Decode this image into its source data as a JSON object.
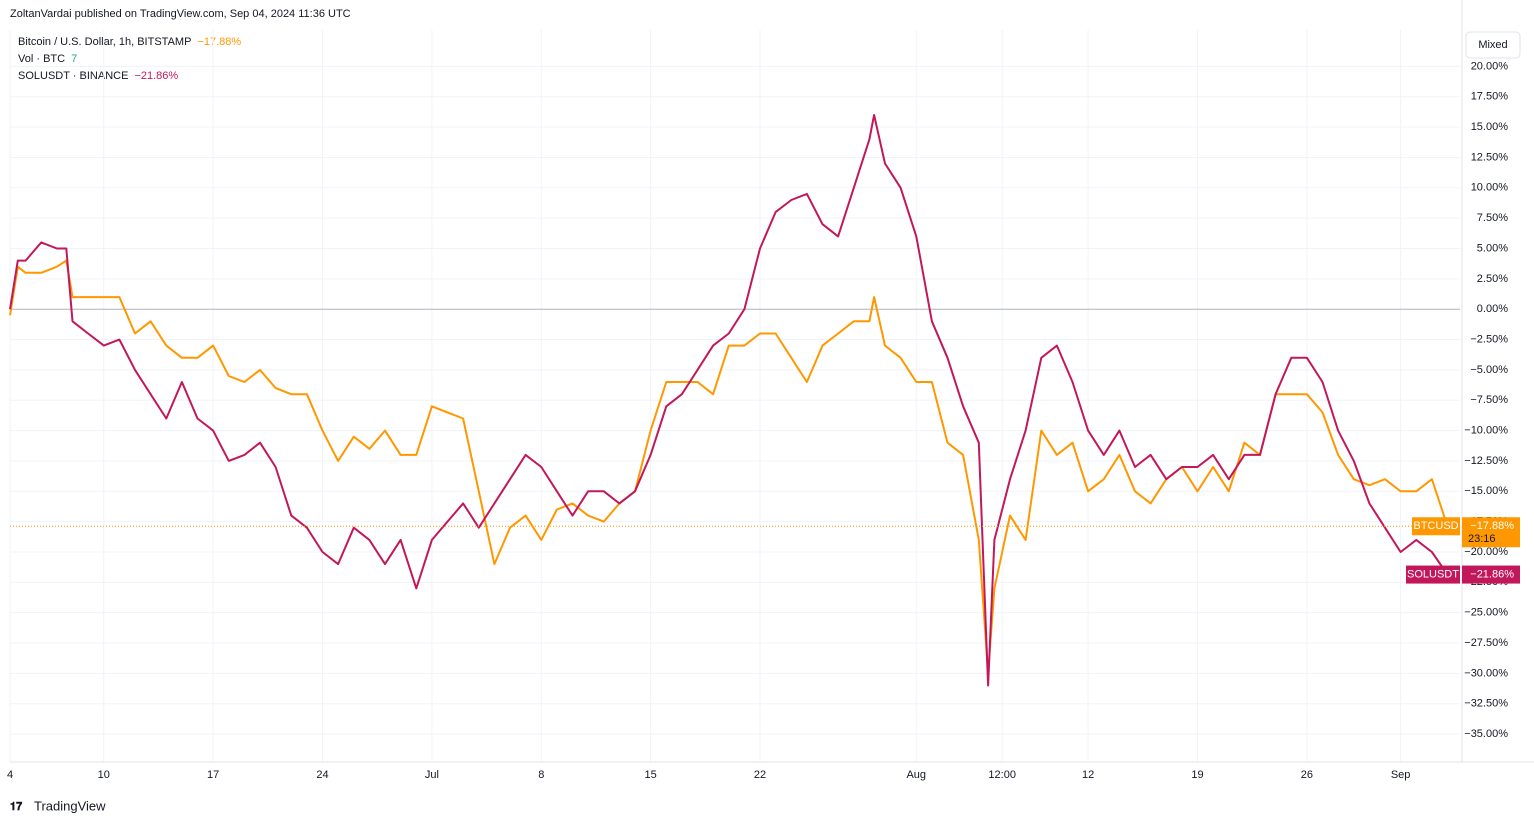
{
  "header": {
    "published": "ZoltanVardai published on TradingView.com, Sep 04, 2024 11:36 UTC",
    "scale_button": "Mixed",
    "footer": "TradingView"
  },
  "legend": {
    "volume_name": "Vol · BTC",
    "volume_value": "7"
  },
  "chart_data": {
    "type": "line",
    "xlim": [
      0,
      92.8
    ],
    "ylim": [
      -37.3,
      23
    ],
    "grid": true,
    "xticks": [
      {
        "value": 0,
        "label": "4"
      },
      {
        "value": 6,
        "label": "10"
      },
      {
        "value": 13,
        "label": "17"
      },
      {
        "value": 20,
        "label": "24"
      },
      {
        "value": 27,
        "label": "Jul"
      },
      {
        "value": 34,
        "label": "8"
      },
      {
        "value": 41,
        "label": "15"
      },
      {
        "value": 48,
        "label": "22"
      },
      {
        "value": 58,
        "label": "Aug"
      },
      {
        "value": 63.5,
        "label": "12:00"
      },
      {
        "value": 69,
        "label": "12"
      },
      {
        "value": 76,
        "label": "19"
      },
      {
        "value": 83,
        "label": "26"
      },
      {
        "value": 89,
        "label": "Sep"
      }
    ],
    "yticks": [
      {
        "value": 20,
        "label": "20.00%"
      },
      {
        "value": 17.5,
        "label": "17.50%"
      },
      {
        "value": 15,
        "label": "15.00%"
      },
      {
        "value": 12.5,
        "label": "12.50%"
      },
      {
        "value": 10,
        "label": "10.00%"
      },
      {
        "value": 7.5,
        "label": "7.50%"
      },
      {
        "value": 5,
        "label": "5.00%"
      },
      {
        "value": 2.5,
        "label": "2.50%"
      },
      {
        "value": 0,
        "label": "0.00%"
      },
      {
        "value": -2.5,
        "label": "−2.50%"
      },
      {
        "value": -5,
        "label": "−5.00%"
      },
      {
        "value": -7.5,
        "label": "−7.50%"
      },
      {
        "value": -10,
        "label": "−10.00%"
      },
      {
        "value": -12.5,
        "label": "−12.50%"
      },
      {
        "value": -15,
        "label": "−15.00%"
      },
      {
        "value": -17.5,
        "label": "−17.50%"
      },
      {
        "value": -20,
        "label": "−20.00%"
      },
      {
        "value": -22.5,
        "label": "−22.50%"
      },
      {
        "value": -25,
        "label": "−25.00%"
      },
      {
        "value": -27.5,
        "label": "−27.50%"
      },
      {
        "value": -30,
        "label": "−30.00%"
      },
      {
        "value": -32.5,
        "label": "−32.50%"
      },
      {
        "value": -35,
        "label": "−35.00%"
      }
    ],
    "x": [
      0,
      0.5,
      1,
      2,
      3,
      3.6,
      4,
      5,
      6,
      7,
      8,
      9,
      10,
      11,
      12,
      13,
      14,
      15,
      16,
      17,
      18,
      19,
      20,
      21,
      22,
      23,
      24,
      25,
      26,
      27,
      28,
      29,
      30,
      31,
      32,
      33,
      34,
      35,
      36,
      37,
      38,
      39,
      40,
      41,
      42,
      43,
      44,
      45,
      46,
      47,
      48,
      49,
      50,
      51,
      52,
      53,
      54,
      55,
      55.3,
      56,
      57,
      58,
      59,
      60,
      61,
      62,
      62.6,
      63,
      64,
      65,
      66,
      67,
      68,
      69,
      70,
      71,
      72,
      73,
      74,
      75,
      76,
      77,
      78,
      79,
      80,
      81,
      82,
      83,
      84,
      85,
      86,
      87,
      88,
      89,
      90,
      91,
      92
    ],
    "series": [
      {
        "name": "Bitcoin / U.S. Dollar, 1h, BITSTAMP",
        "symbol": "BTCUSD",
        "color": "#ff9800",
        "value_label": "−17.88%",
        "countdown": "23:16",
        "values": [
          -0.5,
          3.5,
          3,
          3,
          3.5,
          4,
          1,
          1,
          1,
          1,
          -2,
          -1,
          -3,
          -4,
          -4,
          -3,
          -5.5,
          -6,
          -5,
          -6.5,
          -7,
          -7,
          -10,
          -12.5,
          -10.5,
          -11.5,
          -10,
          -12,
          -12,
          -8,
          -8.5,
          -9,
          -15,
          -21,
          -18,
          -17,
          -19,
          -16.5,
          -16,
          -17,
          -17.5,
          -16,
          -15,
          -10,
          -6,
          -6,
          -6,
          -7,
          -3,
          -3,
          -2,
          -2,
          -4,
          -6,
          -3,
          -2,
          -1,
          -1,
          1,
          -3,
          -4,
          -6,
          -6,
          -11,
          -12,
          -19,
          -30,
          -23,
          -17,
          -19,
          -10,
          -12,
          -11,
          -15,
          -14,
          -12,
          -15,
          -16,
          -14,
          -13,
          -15,
          -13,
          -15,
          -11,
          -12,
          -7,
          -7,
          -7,
          -8.5,
          -12,
          -14,
          -14.5,
          -14,
          -15,
          -15,
          -14,
          -17.88
        ]
      },
      {
        "name": "SOLUSDT · BINANCE",
        "symbol": "SOLUSDT",
        "color": "#c2185b",
        "value_label": "−21.86%",
        "values": [
          0,
          4,
          4,
          5.5,
          5,
          5,
          -1,
          -2,
          -3,
          -2.5,
          -5,
          -7,
          -9,
          -6,
          -9,
          -10,
          -12.5,
          -12,
          -11,
          -13,
          -17,
          -18,
          -20,
          -21,
          -18,
          -19,
          -21,
          -19,
          -23,
          -19,
          -17.5,
          -16,
          -18,
          -16,
          -14,
          -12,
          -13,
          -15,
          -17,
          -15,
          -15,
          -16,
          -15,
          -12,
          -8,
          -7,
          -5,
          -3,
          -2,
          0,
          5,
          8,
          9,
          9.5,
          7,
          6,
          10,
          14,
          16,
          12,
          10,
          6,
          -1,
          -4,
          -8,
          -11,
          -31,
          -19,
          -14,
          -10,
          -4,
          -3,
          -6,
          -10,
          -12,
          -10,
          -13,
          -12,
          -14,
          -13,
          -13,
          -12,
          -14,
          -12,
          -12,
          -7,
          -4,
          -4,
          -6,
          -10,
          -12.5,
          -16,
          -18,
          -20,
          -19,
          -20,
          -21.86
        ]
      }
    ]
  }
}
